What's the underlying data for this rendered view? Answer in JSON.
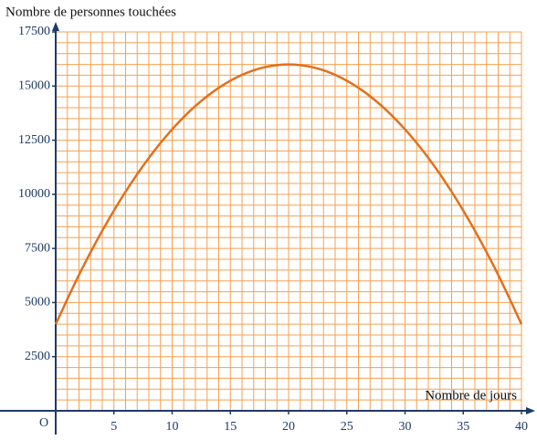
{
  "chart_data": {
    "type": "line",
    "y_axis_label": "Nombre de personnes touchées",
    "x_axis_label": "Nombre de jours",
    "origin_label": "O",
    "x": [
      0,
      2,
      4,
      6,
      8,
      10,
      12,
      14,
      16,
      18,
      20,
      22,
      24,
      26,
      28,
      30,
      32,
      34,
      36,
      38,
      40
    ],
    "values": [
      4000,
      6280,
      8320,
      10120,
      11680,
      13000,
      14080,
      14920,
      15520,
      15880,
      16000,
      15880,
      15520,
      14920,
      14080,
      13000,
      11680,
      10120,
      8320,
      6280,
      4000
    ],
    "color": "#e0701e",
    "xlim": [
      0,
      40
    ],
    "ylim": [
      0,
      17500
    ],
    "xticks": [
      5,
      10,
      15,
      20,
      25,
      30,
      35,
      40
    ],
    "yticks": [
      2500,
      5000,
      7500,
      10000,
      12500,
      15000,
      17500
    ],
    "grid": true,
    "minor_grid": {
      "x": 1,
      "y": 500
    },
    "grid_color": "#f5a050"
  }
}
